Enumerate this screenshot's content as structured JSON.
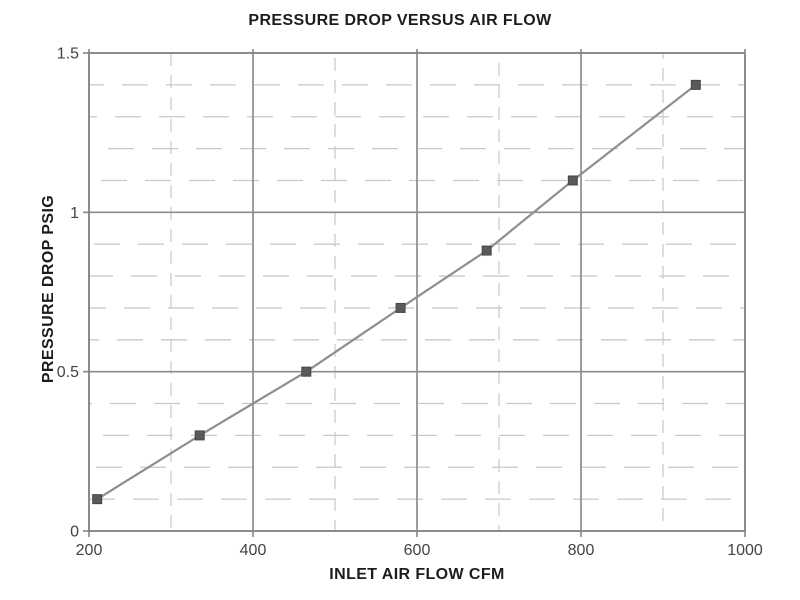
{
  "chart_data": {
    "type": "line",
    "title": "PRESSURE DROP VERSUS AIR FLOW",
    "xlabel": "INLET AIR FLOW CFM",
    "ylabel": "PRESSURE DROP PSIG",
    "xlim": [
      200,
      1000
    ],
    "ylim": [
      0,
      1.5
    ],
    "x_major_ticks": [
      200,
      400,
      600,
      800,
      1000
    ],
    "x_tick_labels": [
      "200",
      "400",
      "600",
      "800",
      "1000"
    ],
    "y_major_ticks": [
      0,
      0.5,
      1,
      1.5
    ],
    "y_tick_labels": [
      "0",
      "0.5",
      "1",
      "1.5"
    ],
    "x_minor_step": 100,
    "y_minor_step": 0.1,
    "grid": "major solid gray, minor faint broken dashes",
    "legend": "none",
    "series": [
      {
        "name": "pressure drop",
        "marker": "square",
        "x": [
          210,
          335,
          465,
          580,
          685,
          790,
          940
        ],
        "y": [
          0.1,
          0.3,
          0.5,
          0.7,
          0.88,
          1.1,
          1.4
        ]
      }
    ],
    "colors": {
      "line": "#8f8f8f",
      "marker": "#5a5a5a",
      "marker_edge": "#454545",
      "grid_major": "#8c8c8c",
      "grid_minor": "#c9c9c9",
      "border": "#858585",
      "tick_text": "#434343",
      "title_text": "#1d1d1d",
      "background": "#ffffff"
    }
  }
}
